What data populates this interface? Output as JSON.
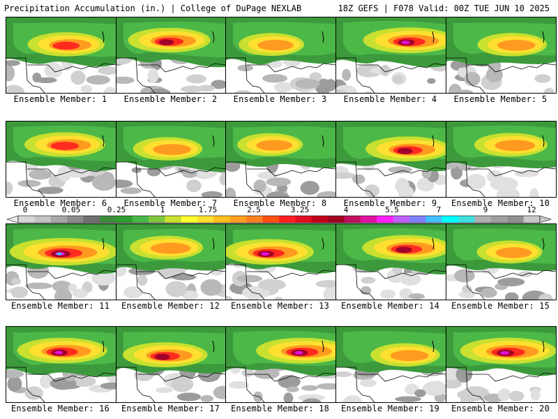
{
  "header": {
    "left_title": "Precipitation Accumulation (in.) | College of DuPage NEXLAB",
    "right_title": "18Z GEFS | F078 Valid: 00Z TUE JUN 10 2025"
  },
  "members": [
    {
      "label": "Ensemble Member: 1",
      "intensity": 0.55
    },
    {
      "label": "Ensemble Member: 2",
      "intensity": 0.62
    },
    {
      "label": "Ensemble Member: 3",
      "intensity": 0.4
    },
    {
      "label": "Ensemble Member: 4",
      "intensity": 0.75
    },
    {
      "label": "Ensemble Member: 5",
      "intensity": 0.45
    },
    {
      "label": "Ensemble Member: 6",
      "intensity": 0.6
    },
    {
      "label": "Ensemble Member: 7",
      "intensity": 0.45
    },
    {
      "label": "Ensemble Member: 8",
      "intensity": 0.4
    },
    {
      "label": "Ensemble Member: 9",
      "intensity": 0.65
    },
    {
      "label": "Ensemble Member: 10",
      "intensity": 0.5
    },
    {
      "label": "Ensemble Member: 11",
      "intensity": 0.95
    },
    {
      "label": "Ensemble Member: 12",
      "intensity": 0.5
    },
    {
      "label": "Ensemble Member: 13",
      "intensity": 0.72
    },
    {
      "label": "Ensemble Member: 14",
      "intensity": 0.7
    },
    {
      "label": "Ensemble Member: 15",
      "intensity": 0.4
    },
    {
      "label": "Ensemble Member: 16",
      "intensity": 0.72
    },
    {
      "label": "Ensemble Member: 17",
      "intensity": 0.65
    },
    {
      "label": "Ensemble Member: 18",
      "intensity": 0.75
    },
    {
      "label": "Ensemble Member: 19",
      "intensity": 0.45
    },
    {
      "label": "Ensemble Member: 20",
      "intensity": 0.8
    }
  ],
  "colorbar": {
    "tick_labels": [
      "0",
      "0.05",
      "0.25",
      "1",
      "1.75",
      "2.5",
      "3.25",
      "4",
      "5.5",
      "7",
      "9",
      "12"
    ],
    "colors": [
      "#d8d8d8",
      "#c4c4c4",
      "#a8a8a8",
      "#8c8c8c",
      "#707070",
      "#3c8a3c",
      "#2e9e2e",
      "#48b848",
      "#80c840",
      "#c8e030",
      "#fffc30",
      "#ffe030",
      "#ffc020",
      "#ffa020",
      "#ff8020",
      "#ff5010",
      "#ff2020",
      "#e01020",
      "#c00018",
      "#a00020",
      "#c01060",
      "#e010a0",
      "#ff20ff",
      "#c060ff",
      "#8080ff",
      "#40c0ff",
      "#00ffff",
      "#40e0e0",
      "#b0b0b0",
      "#a0a0a0",
      "#909090",
      "#c8c8c8"
    ]
  }
}
